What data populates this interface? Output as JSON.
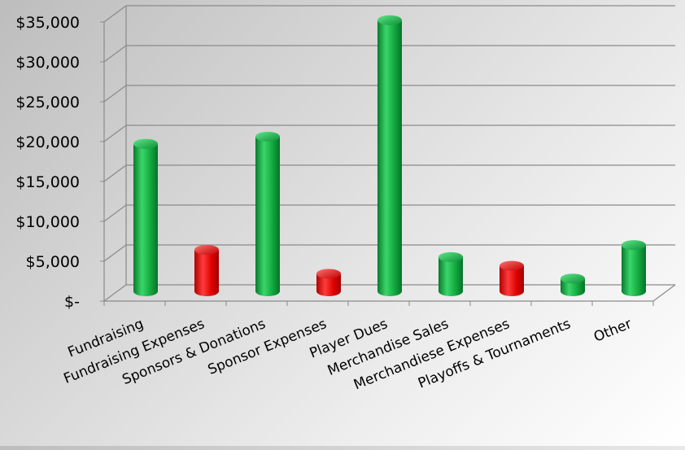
{
  "chart_data": {
    "type": "bar",
    "title": "",
    "xlabel": "",
    "ylabel": "",
    "ylim": [
      0,
      35000
    ],
    "grid": true,
    "legend": "none",
    "y_ticks": [
      {
        "value": 0,
        "label": "$-"
      },
      {
        "value": 5000,
        "label": "$5,000"
      },
      {
        "value": 10000,
        "label": "$10,000"
      },
      {
        "value": 15000,
        "label": "$15,000"
      },
      {
        "value": 20000,
        "label": "$20,000"
      },
      {
        "value": 25000,
        "label": "$25,000"
      },
      {
        "value": 30000,
        "label": "$30,000"
      },
      {
        "value": 35000,
        "label": "$35,000"
      }
    ],
    "categories": [
      "Fundraising",
      "Fundraising Expenses",
      "Sponsors & Donations",
      "Sponsor Expenses",
      "Player Dues",
      "Merchandise Sales",
      "Merchandiese Expenses",
      "Playoffs & Tournaments",
      "Other"
    ],
    "values": [
      18500,
      5200,
      19400,
      2200,
      34000,
      4300,
      3200,
      1600,
      5800
    ],
    "bar_colors": [
      "#16a34a",
      "#e11",
      "#16a34a",
      "#e11",
      "#16a34a",
      "#16a34a",
      "#e11",
      "#16a34a",
      "#16a34a"
    ]
  }
}
